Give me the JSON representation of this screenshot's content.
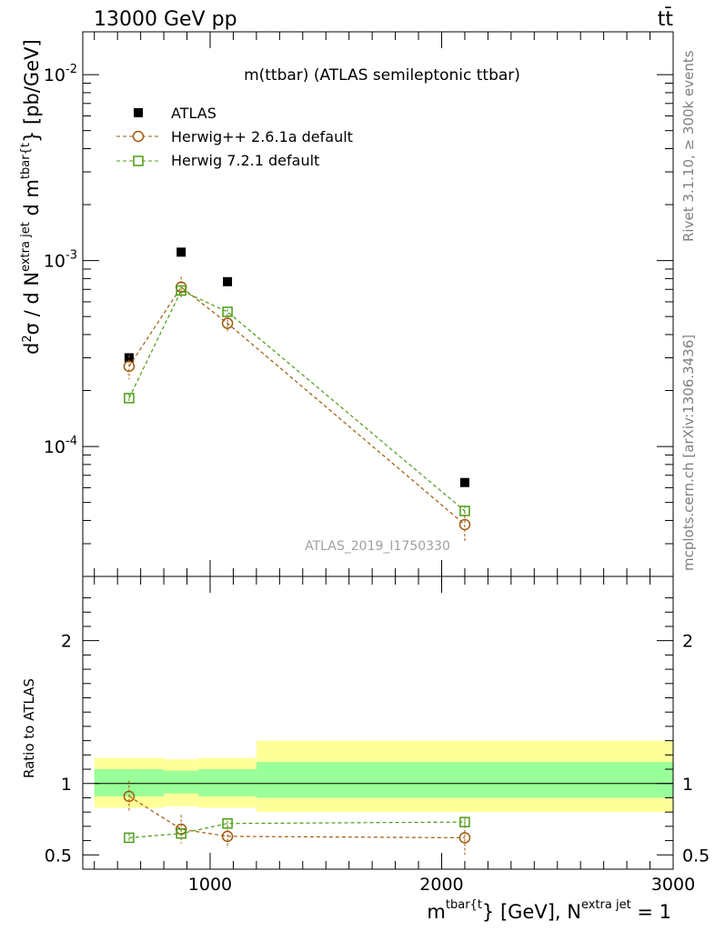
{
  "header": {
    "left": "13000 GeV pp",
    "right": "tt̄"
  },
  "side_labels": {
    "rivet": "Rivet 3.1.10, ≥ 300k events",
    "mcplots": "mcplots.cern.ch [arXiv:1306.3436]"
  },
  "chart_data": [
    {
      "type": "scatter",
      "panel": "main",
      "title": "m(ttbar) (ATLAS semileptonic ttbar)",
      "watermark": "ATLAS_2019_I1750330",
      "ylabel": "d²σ / d N^{extra jet} d m^{tbar{t}} [pb/GeV]",
      "ylabel_parts": {
        "d2": "d",
        "sup2": "2",
        "sigma": "σ / d N",
        "supNjet": "extra jet",
        "dm": " d m",
        "supTbar": "tbar{t",
        "brace_unit": "} [pb/GeV]"
      },
      "yscale": "log",
      "ylim": [
        2e-05,
        0.017
      ],
      "xlim": [
        450,
        3000
      ],
      "y_tick_labels": [
        {
          "value": 0.01,
          "base": "10",
          "exp": "-2"
        },
        {
          "value": 0.001,
          "base": "10",
          "exp": "-3"
        },
        {
          "value": 0.0001,
          "base": "10",
          "exp": "-4"
        }
      ],
      "legend_position": "top-left",
      "series": [
        {
          "name": "ATLAS",
          "marker": "filled-square",
          "color": "#000000",
          "x": [
            650,
            875,
            1075,
            2100
          ],
          "y": [
            0.0003,
            0.00111,
            0.00077,
            6.4e-05
          ],
          "yerr": [
            0,
            0,
            0,
            0
          ]
        },
        {
          "name": "Herwig++ 2.6.1a default",
          "marker": "open-circle",
          "color": "#a0580b",
          "x": [
            650,
            875,
            1075,
            2100
          ],
          "y": [
            0.00027,
            0.00072,
            0.00046,
            3.8e-05
          ],
          "yerr": [
            4e-05,
            0.0001,
            5e-05,
            7e-06
          ]
        },
        {
          "name": "Herwig 7.2.1 default",
          "marker": "open-square",
          "color": "#4a9c14",
          "x": [
            650,
            875,
            1075,
            2100
          ],
          "y": [
            0.000182,
            0.00069,
            0.00053,
            4.5e-05
          ],
          "yerr": [
            1e-05,
            3e-05,
            2e-05,
            3e-06
          ]
        }
      ]
    },
    {
      "type": "scatter",
      "panel": "ratio",
      "ylabel": "Ratio to ATLAS",
      "xlabel": "m^{tbar{t}} [GeV], N^{extra jet} = 1",
      "xlabel_parts": {
        "m": "m",
        "supTbar": "tbar{t",
        "mid": "} [GeV], N",
        "supNjet": "extra jet",
        "end": " = 1"
      },
      "xlim": [
        450,
        3000
      ],
      "ylim": [
        0.4,
        2.45
      ],
      "x_tick_labels": [
        "1000",
        "2000",
        "3000"
      ],
      "x_tick_values": [
        1000,
        2000,
        3000
      ],
      "y_tick_labels": [
        "0.5",
        "1",
        "2"
      ],
      "y_tick_values": [
        0.5,
        1,
        2
      ],
      "bands": [
        {
          "x0": 500,
          "x1": 800,
          "inner": [
            0.91,
            1.1
          ],
          "outer": [
            0.83,
            1.18
          ]
        },
        {
          "x0": 800,
          "x1": 950,
          "inner": [
            0.93,
            1.09
          ],
          "outer": [
            0.84,
            1.17
          ]
        },
        {
          "x0": 950,
          "x1": 1200,
          "inner": [
            0.91,
            1.1
          ],
          "outer": [
            0.83,
            1.18
          ]
        },
        {
          "x0": 1200,
          "x1": 3000,
          "inner": [
            0.9,
            1.15
          ],
          "outer": [
            0.8,
            1.3
          ]
        }
      ],
      "band_colors": {
        "outer": "#ffff99",
        "inner": "#99ff99"
      },
      "series": [
        {
          "name": "Herwig++ 2.6.1a default",
          "marker": "open-circle",
          "color": "#a0580b",
          "x": [
            650,
            875,
            1075,
            2100
          ],
          "y": [
            0.91,
            0.68,
            0.63,
            0.62
          ],
          "yerr": [
            0.11,
            0.1,
            0.08,
            0.12
          ]
        },
        {
          "name": "Herwig 7.2.1 default",
          "marker": "open-square",
          "color": "#4a9c14",
          "x": [
            650,
            875,
            1075,
            2100
          ],
          "y": [
            0.62,
            0.65,
            0.72,
            0.73
          ],
          "yerr": [
            0.03,
            0.03,
            0.02,
            0.03
          ]
        }
      ]
    }
  ]
}
